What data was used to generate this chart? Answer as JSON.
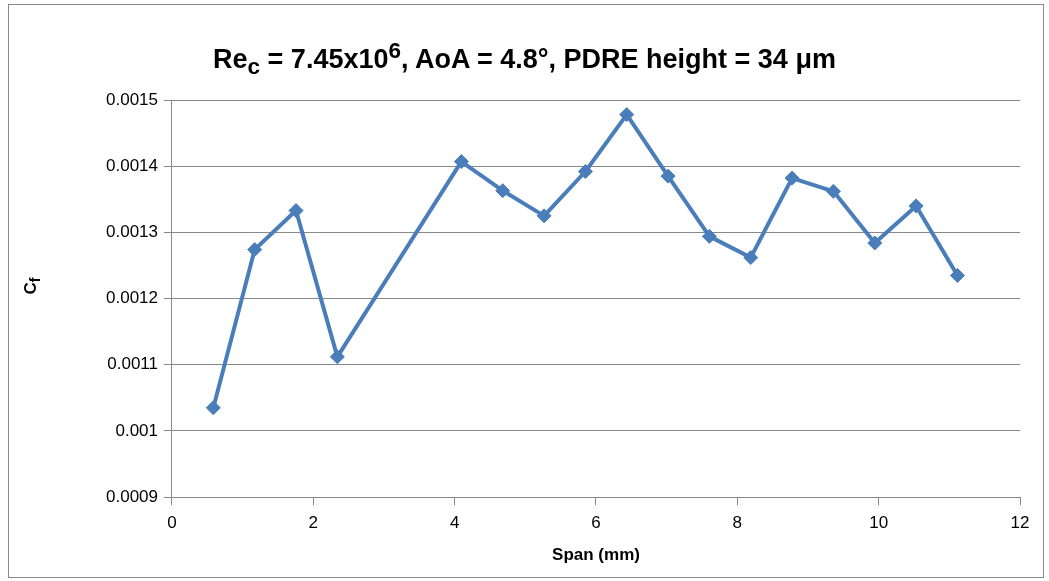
{
  "chart_data": {
    "type": "line",
    "title": "Re$_{c}$ = 7.45x10$^{6}$, AoA = 4.8°, PDRE height = 34 μm",
    "xlabel": "Span (mm)",
    "ylabel": "C$_{f}$",
    "series": [
      {
        "color": "#4a7ebb",
        "x": [
          0.585,
          1.17,
          1.755,
          2.34,
          4.095,
          4.68,
          5.265,
          5.85,
          6.435,
          7.02,
          7.605,
          8.19,
          8.775,
          9.36,
          9.945,
          10.53,
          11.115
        ],
        "values": [
          0.001035,
          0.001274,
          0.001333,
          0.001112,
          0.001407,
          0.001363,
          0.001325,
          0.001392,
          0.001478,
          0.001385,
          0.001294,
          0.001262,
          0.001382,
          0.001362,
          0.001284,
          0.00134,
          0.001235
        ]
      }
    ],
    "xlim": [
      0,
      12
    ],
    "xticks": [
      0,
      2,
      4,
      6,
      8,
      10,
      12
    ],
    "ylim": [
      0.0009,
      0.0015
    ],
    "yticks": [
      0.0009,
      0.001,
      0.0011,
      0.0012,
      0.0013,
      0.0014,
      0.0015
    ],
    "grid": "y",
    "legend": false,
    "marker": "diamond",
    "line_style": "solid"
  }
}
